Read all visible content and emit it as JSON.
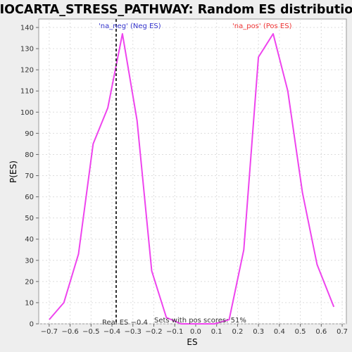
{
  "chart_data": {
    "type": "line",
    "title": "BIOCARTA_STRESS_PATHWAY: Random ES distribution",
    "xlabel": "ES",
    "ylabel": "P(ES)",
    "xlim": [
      -0.75,
      0.72
    ],
    "ylim": [
      0,
      144
    ],
    "x_ticks": [
      -0.7,
      -0.6,
      -0.5,
      -0.4,
      -0.3,
      -0.2,
      -0.1,
      0.0,
      0.1,
      0.2,
      0.3,
      0.4,
      0.5,
      0.6,
      0.7
    ],
    "x_tick_labels": [
      "−0.7",
      "−0.6",
      "−0.5",
      "−0.4",
      "−0.3",
      "−0.2",
      "−0.1",
      "0.0",
      "0.1",
      "0.2",
      "0.3",
      "0.4",
      "0.5",
      "0.6",
      "0.7"
    ],
    "y_ticks": [
      0,
      10,
      20,
      30,
      40,
      50,
      60,
      70,
      80,
      90,
      100,
      110,
      120,
      130,
      140
    ],
    "y_tick_labels": [
      "0",
      "10",
      "20",
      "30",
      "40",
      "50",
      "60",
      "70",
      "80",
      "90",
      "100",
      "110",
      "120",
      "130",
      "140"
    ],
    "grid": true,
    "series": [
      {
        "color": "#ee44ee",
        "points": [
          [
            -0.7,
            2
          ],
          [
            -0.63,
            10
          ],
          [
            -0.56,
            33
          ],
          [
            -0.49,
            85
          ],
          [
            -0.42,
            102
          ],
          [
            -0.35,
            137
          ],
          [
            -0.28,
            96
          ],
          [
            -0.21,
            25
          ],
          [
            -0.14,
            3
          ],
          [
            -0.07,
            0
          ],
          [
            0.02,
            0
          ],
          [
            0.09,
            0
          ],
          [
            0.16,
            2
          ],
          [
            0.23,
            35
          ],
          [
            0.3,
            126
          ],
          [
            0.37,
            137
          ],
          [
            0.44,
            110
          ],
          [
            0.51,
            62
          ],
          [
            0.58,
            28
          ],
          [
            0.66,
            8
          ]
        ]
      }
    ],
    "legend": [
      {
        "label": "'na_neg' (Neg ES)",
        "color": "#3333cc",
        "position": "top-left"
      },
      {
        "label": "'na_pos' (Pos ES)",
        "color": "#ee3333",
        "position": "top-right"
      }
    ],
    "real_es": {
      "value": -0.38,
      "label": "Real ES −0.4"
    },
    "annotation": "Sets with pos scores: 51%"
  }
}
